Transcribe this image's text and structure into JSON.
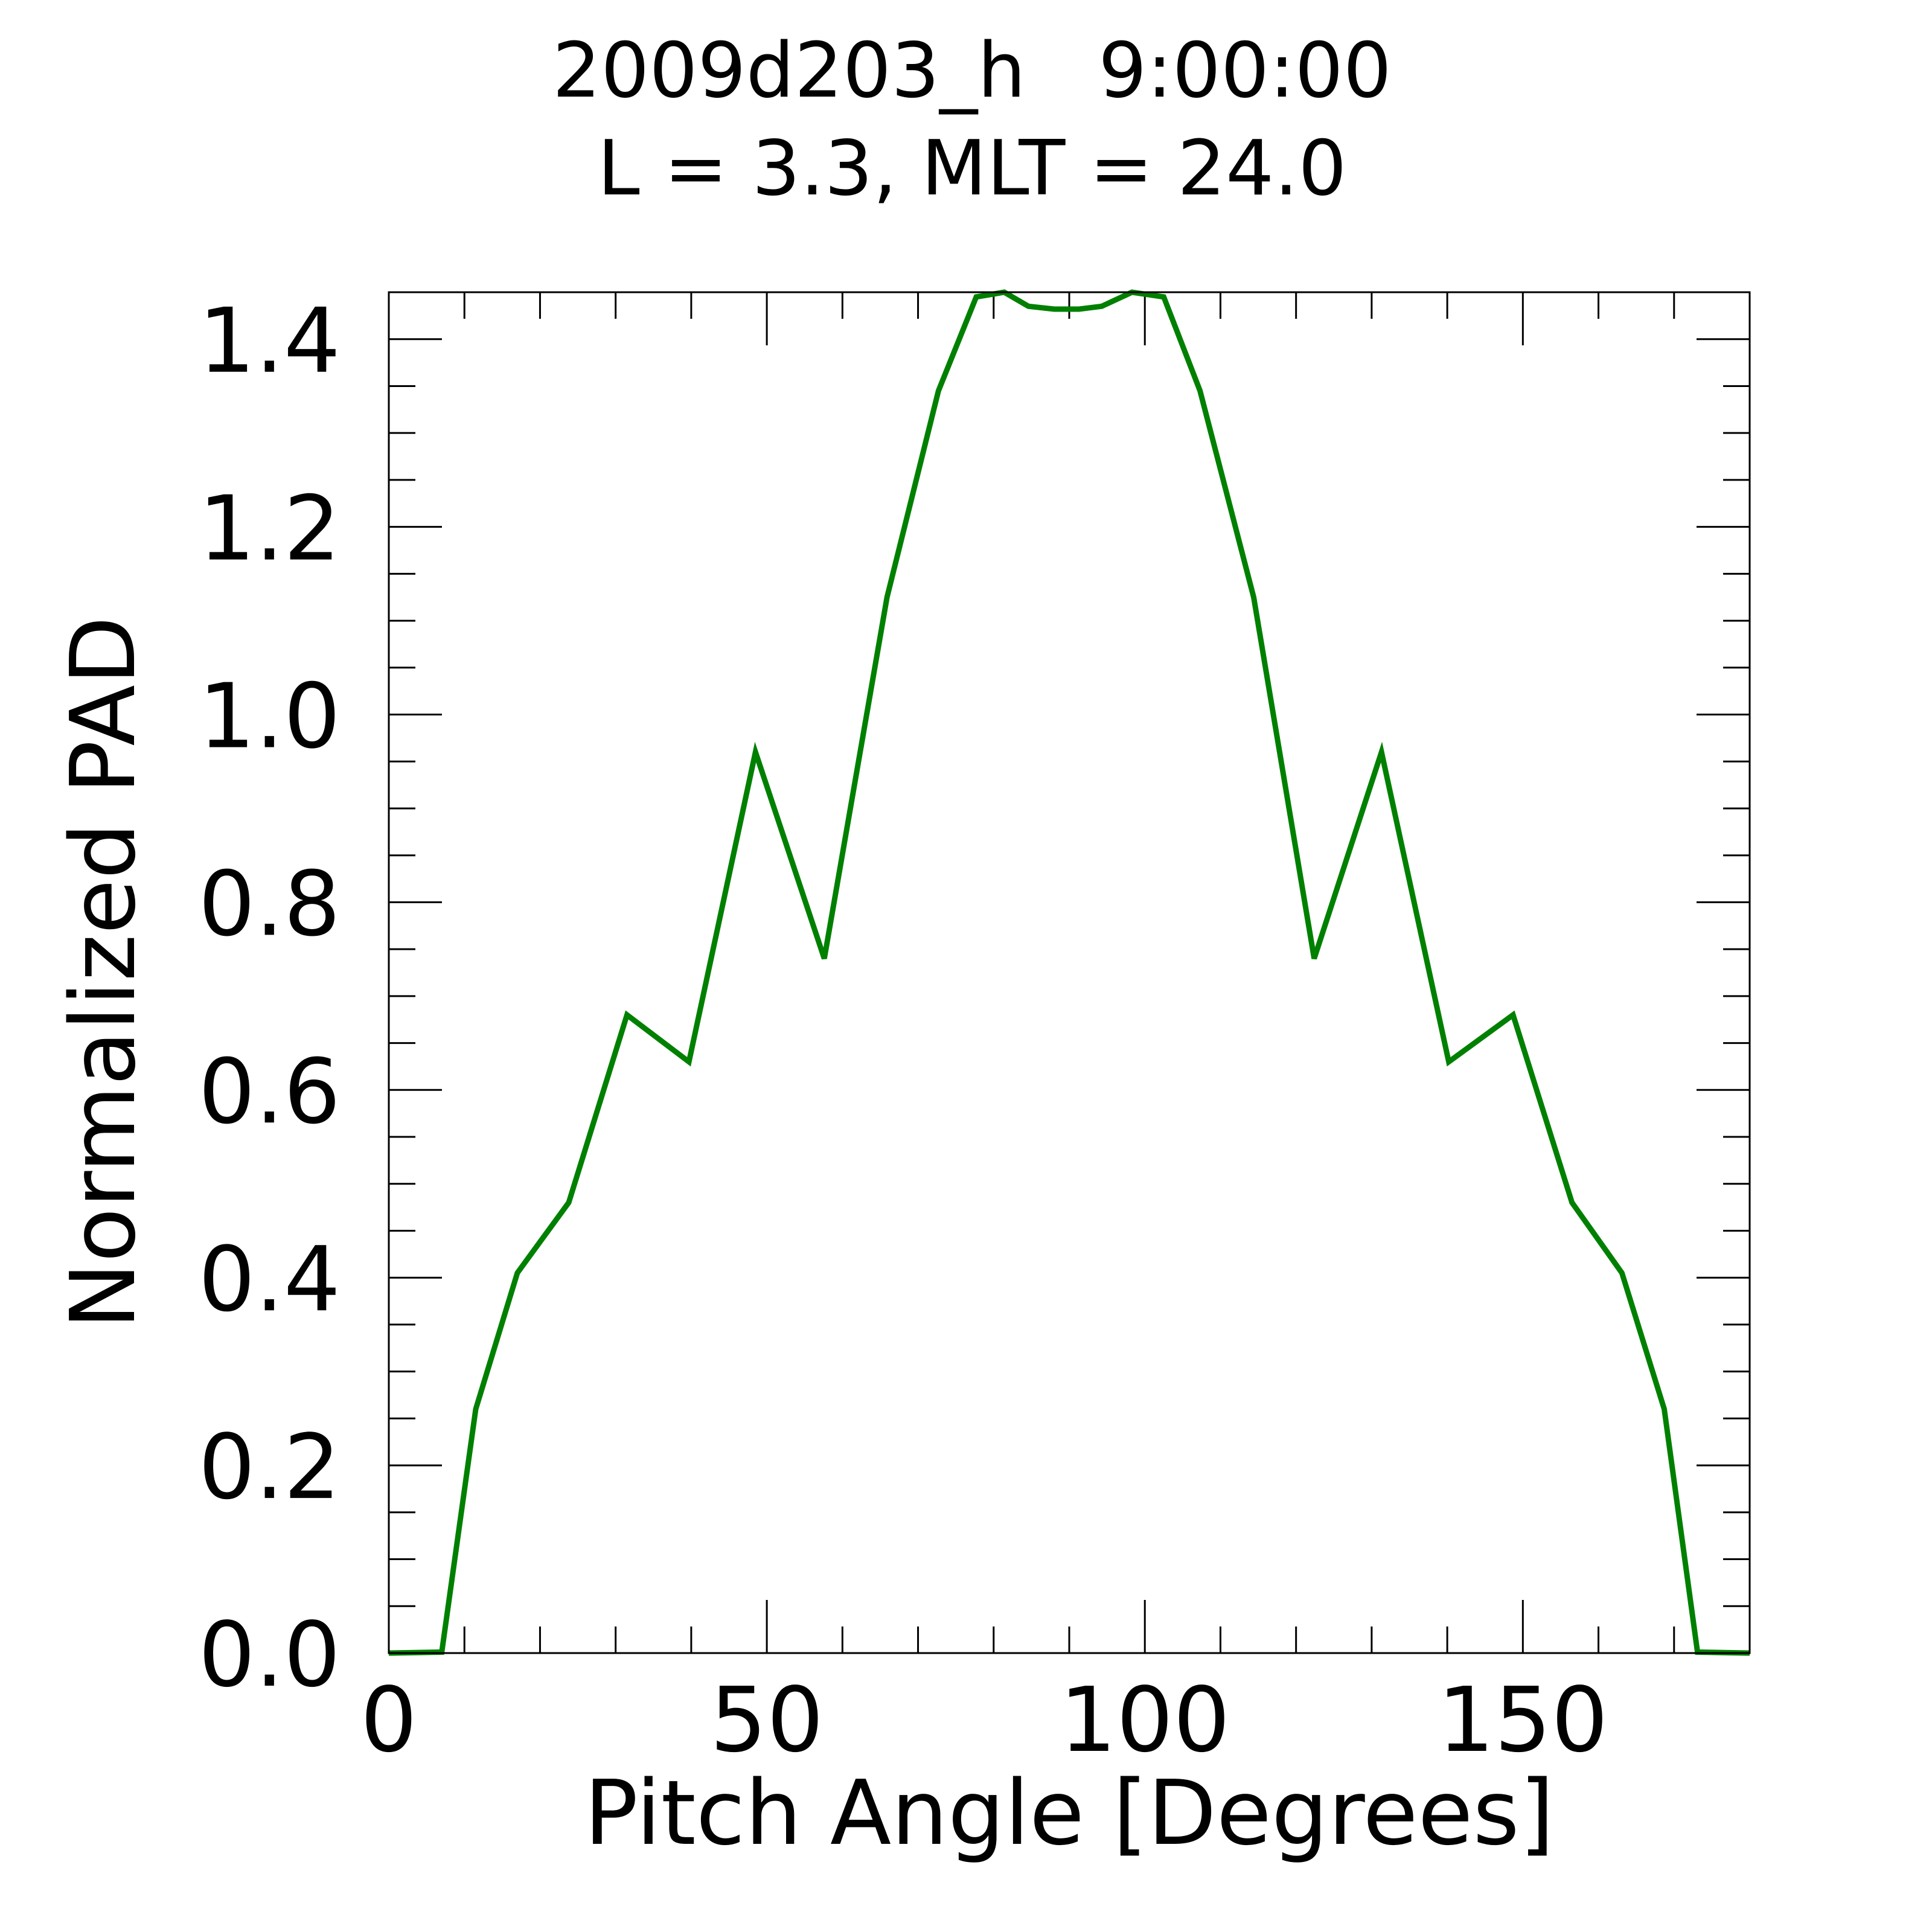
{
  "chart_data": {
    "type": "line",
    "title": "2009d203_h   9:00:00",
    "subtitle": "L = 3.3, MLT = 24.0",
    "xlabel": "Pitch Angle [Degrees]",
    "ylabel": "Normalized PAD",
    "xlim": [
      0,
      180
    ],
    "ylim": [
      0,
      1.45
    ],
    "x_ticks": [
      0,
      50,
      100,
      150
    ],
    "x_tick_labels": [
      "0",
      "50",
      "100",
      "150"
    ],
    "x_minor_step": 10,
    "y_ticks": [
      0.0,
      0.2,
      0.4,
      0.6,
      0.8,
      1.0,
      1.2,
      1.4
    ],
    "y_tick_labels": [
      "0.0",
      "0.2",
      "0.4",
      "0.6",
      "0.8",
      "1.0",
      "1.2",
      "1.4"
    ],
    "y_minor_step": 0.05,
    "grid": false,
    "line_color": "#008000",
    "series": [
      {
        "x": [
          0,
          7,
          11.5,
          17,
          23.8,
          31.5,
          39.7,
          48.5,
          57.6,
          65.9,
          72.7,
          77.7,
          81.4,
          84.6,
          88,
          91.3,
          94.3,
          98.3,
          102.5,
          107.3,
          114.4,
          122.4,
          131.3,
          140.2,
          148.7,
          156.5,
          163.1,
          168.7,
          173.1,
          180
        ],
        "y": [
          0,
          0.001,
          0.26,
          0.405,
          0.48,
          0.68,
          0.63,
          0.96,
          0.74,
          1.125,
          1.345,
          1.445,
          1.45,
          1.435,
          1.432,
          1.432,
          1.435,
          1.45,
          1.445,
          1.345,
          1.125,
          0.74,
          0.96,
          0.63,
          0.68,
          0.48,
          0.405,
          0.26,
          0.001,
          0
        ]
      }
    ]
  }
}
